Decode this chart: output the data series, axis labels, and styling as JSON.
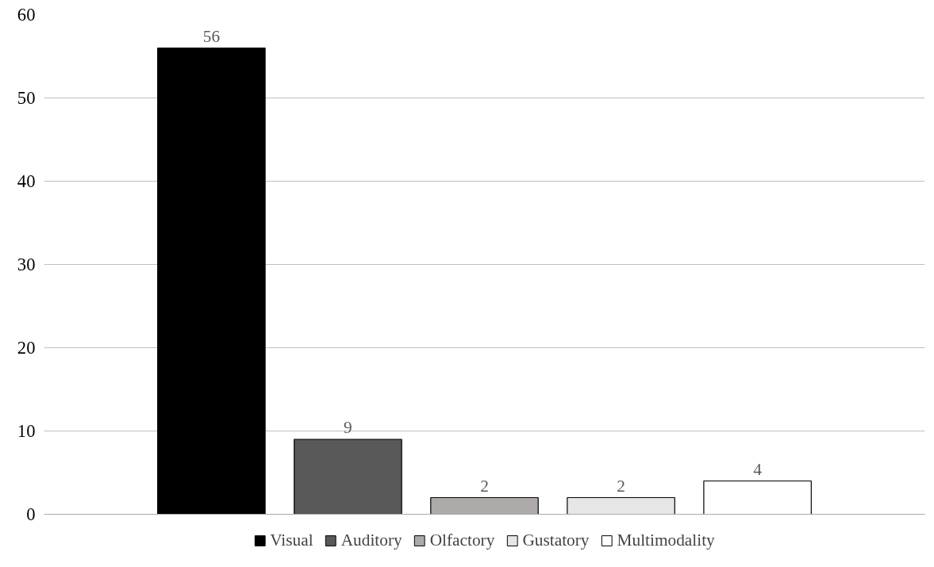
{
  "chart_data": {
    "type": "bar",
    "categories": [
      null
    ],
    "series": [
      {
        "name": "Visual",
        "color": "#000000",
        "values": [
          56
        ]
      },
      {
        "name": "Auditory",
        "color": "#595959",
        "values": [
          9
        ]
      },
      {
        "name": "Olfactory",
        "color": "#aeaaaa",
        "values": [
          2
        ]
      },
      {
        "name": "Gustatory",
        "color": "#e7e6e6",
        "values": [
          2
        ]
      },
      {
        "name": "Multimodality",
        "color": "#ffffff",
        "values": [
          4
        ]
      }
    ],
    "ylim": [
      0,
      60
    ],
    "yticks": [
      0,
      10,
      20,
      30,
      40,
      50,
      60
    ],
    "grid": "y",
    "legend": "bottom",
    "data_labels": true
  }
}
